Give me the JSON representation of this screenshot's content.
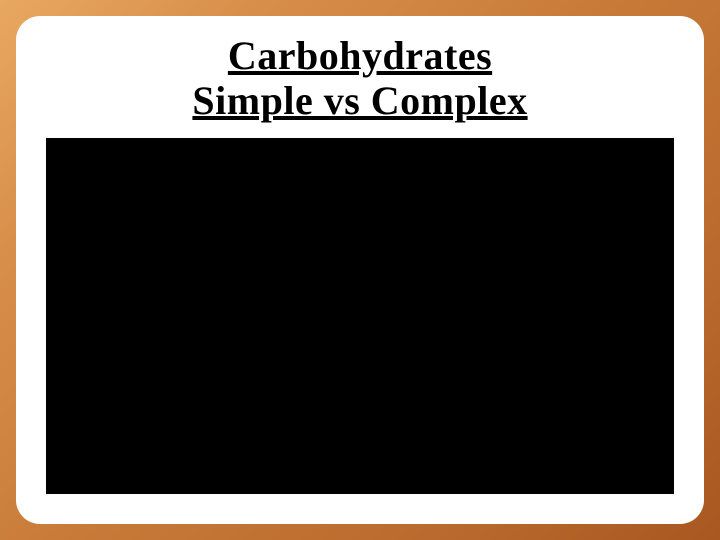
{
  "slide": {
    "title_line1": "Carbohydrates",
    "title_line2": "Simple vs Complex",
    "background_gradient": {
      "start": "#e8a862",
      "mid": "#c77a38",
      "end": "#a85820"
    },
    "inner_background": "#ffffff",
    "inner_border_radius": 24,
    "title_fontsize": 40,
    "title_color": "#000000",
    "title_weight": "bold",
    "title_underline": true,
    "media_background": "#000000"
  }
}
